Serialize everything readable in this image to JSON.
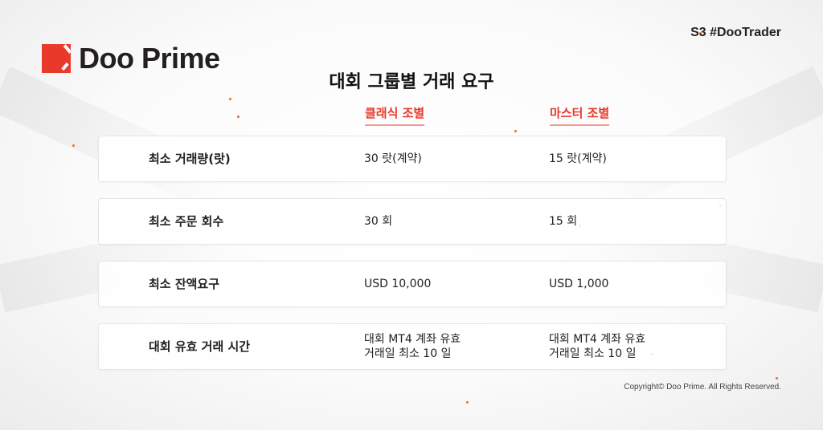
{
  "brand": {
    "name": "Doo Prime",
    "accent": "#e8392b"
  },
  "tag": "S3 #DooTrader",
  "title": "대회 그룹별 거래 요구",
  "columns": [
    "클래식 조별",
    "마스터 조별"
  ],
  "rows": [
    {
      "label": "최소 거래량(랏)",
      "classic": "30 랏(계약)",
      "master": "15 랏(계약)"
    },
    {
      "label": "최소 주문 회수",
      "classic": "30 회",
      "master": "15 회"
    },
    {
      "label": "최소 잔액요구",
      "classic": "USD 10,000",
      "master": "USD 1,000"
    },
    {
      "label": "대회 유효 거래 시간",
      "classic": "대회 MT4 계좌 유효\n거래일 최소 10 일",
      "master": "대회 MT4 계좌 유효\n거래일 최소 10 일"
    }
  ],
  "copyright": "Copyright© Doo Prime. All Rights Reserved."
}
